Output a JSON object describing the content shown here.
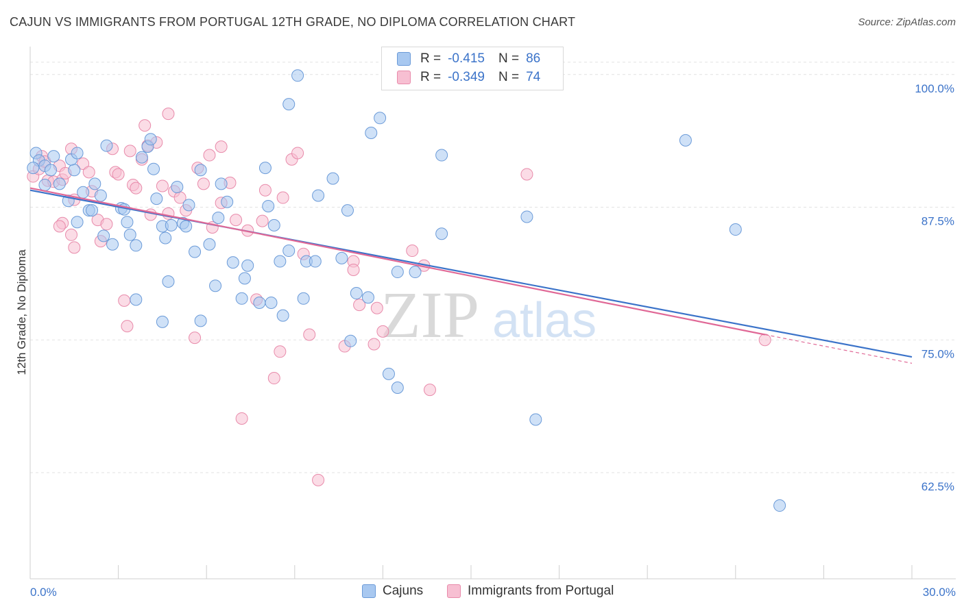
{
  "header": {
    "title": "CAJUN VS IMMIGRANTS FROM PORTUGAL 12TH GRADE, NO DIPLOMA CORRELATION CHART",
    "source": "Source: ZipAtlas.com"
  },
  "watermark": {
    "zip": "ZIP",
    "atlas": "atlas"
  },
  "legend": {
    "rows": [
      {
        "r_label": "R =",
        "r_value": "-0.415",
        "n_label": "N =",
        "n_value": "86",
        "color": "#a8c8f0",
        "stroke": "#6a9ad8"
      },
      {
        "r_label": "R =",
        "r_value": "-0.349",
        "n_label": "N =",
        "n_value": "74",
        "color": "#f7bfd2",
        "stroke": "#e88aaa"
      }
    ]
  },
  "bottom_legend": {
    "items": [
      {
        "label": "Cajuns",
        "color": "#a8c8f0",
        "stroke": "#6a9ad8"
      },
      {
        "label": "Immigrants from Portugal",
        "color": "#f7bfd2",
        "stroke": "#e88aaa"
      }
    ]
  },
  "chart_data": {
    "type": "scatter",
    "title": "CAJUN VS IMMIGRANTS FROM PORTUGAL 12TH GRADE, NO DIPLOMA CORRELATION CHART",
    "xlabel": "",
    "ylabel": "12th Grade, No Diploma",
    "xlim": [
      0,
      30
    ],
    "ylim": [
      52.5,
      102.5
    ],
    "x_tick_labels": [
      {
        "value": 0,
        "label": "0.0%"
      },
      {
        "value": 30,
        "label": "30.0%"
      }
    ],
    "y_tick_labels": [
      {
        "value": 100,
        "label": "100.0%"
      },
      {
        "value": 87.5,
        "label": "87.5%"
      },
      {
        "value": 75,
        "label": "75.0%"
      },
      {
        "value": 62.5,
        "label": "62.5%"
      }
    ],
    "grid": true,
    "colors": {
      "cajuns_fill": "#a8c8f0",
      "cajuns_stroke": "#6a9ad8",
      "cajuns_line": "#3b73c9",
      "portugal_fill": "#f7bfd2",
      "portugal_stroke": "#e88aaa",
      "portugal_line": "#e06896",
      "tick_label": "#3b73c9"
    },
    "series": [
      {
        "name": "Cajuns",
        "trend": {
          "x": [
            0,
            30
          ],
          "y": [
            89.1,
            73.4
          ]
        },
        "points": [
          [
            0.2,
            92.6
          ],
          [
            0.3,
            91.9
          ],
          [
            0.5,
            91.4
          ],
          [
            0.7,
            91.0
          ],
          [
            0.8,
            92.3
          ],
          [
            1.0,
            89.7
          ],
          [
            0.5,
            89.6
          ],
          [
            1.5,
            91.0
          ],
          [
            1.4,
            92.0
          ],
          [
            1.6,
            92.6
          ],
          [
            1.8,
            88.9
          ],
          [
            2.2,
            89.7
          ],
          [
            2.4,
            88.6
          ],
          [
            2.6,
            93.3
          ],
          [
            2.8,
            84.0
          ],
          [
            1.3,
            88.1
          ],
          [
            2.0,
            87.2
          ],
          [
            1.6,
            86.1
          ],
          [
            2.1,
            87.2
          ],
          [
            3.1,
            87.4
          ],
          [
            3.3,
            86.1
          ],
          [
            3.4,
            84.9
          ],
          [
            3.6,
            83.9
          ],
          [
            2.5,
            84.8
          ],
          [
            3.6,
            78.8
          ],
          [
            3.8,
            92.2
          ],
          [
            4.0,
            93.2
          ],
          [
            4.1,
            93.9
          ],
          [
            4.2,
            91.1
          ],
          [
            4.3,
            88.3
          ],
          [
            4.5,
            85.7
          ],
          [
            4.6,
            84.6
          ],
          [
            4.7,
            80.5
          ],
          [
            4.5,
            76.7
          ],
          [
            5.0,
            89.4
          ],
          [
            5.2,
            86.0
          ],
          [
            5.3,
            85.7
          ],
          [
            5.4,
            87.7
          ],
          [
            5.6,
            83.3
          ],
          [
            5.8,
            91.0
          ],
          [
            5.8,
            76.8
          ],
          [
            6.1,
            84.0
          ],
          [
            6.3,
            80.1
          ],
          [
            6.5,
            89.7
          ],
          [
            6.7,
            88.0
          ],
          [
            6.9,
            82.3
          ],
          [
            7.2,
            78.9
          ],
          [
            7.3,
            80.8
          ],
          [
            7.4,
            82.0
          ],
          [
            7.8,
            78.5
          ],
          [
            8.0,
            91.2
          ],
          [
            8.1,
            87.6
          ],
          [
            8.2,
            78.5
          ],
          [
            8.3,
            85.8
          ],
          [
            8.5,
            82.4
          ],
          [
            8.6,
            77.3
          ],
          [
            8.8,
            83.4
          ],
          [
            8.8,
            97.2
          ],
          [
            9.1,
            99.9
          ],
          [
            9.3,
            78.9
          ],
          [
            9.4,
            82.4
          ],
          [
            9.7,
            82.4
          ],
          [
            9.8,
            88.6
          ],
          [
            10.3,
            90.2
          ],
          [
            10.6,
            82.7
          ],
          [
            10.8,
            87.2
          ],
          [
            10.9,
            74.9
          ],
          [
            11.1,
            79.4
          ],
          [
            11.5,
            79.0
          ],
          [
            11.6,
            94.5
          ],
          [
            11.9,
            95.9
          ],
          [
            12.2,
            71.8
          ],
          [
            12.5,
            70.5
          ],
          [
            12.5,
            81.4
          ],
          [
            13.1,
            81.4
          ],
          [
            14.0,
            92.4
          ],
          [
            14.0,
            85.0
          ],
          [
            16.9,
            86.6
          ],
          [
            17.2,
            67.5
          ],
          [
            22.3,
            93.8
          ],
          [
            24.0,
            85.4
          ],
          [
            25.5,
            59.4
          ],
          [
            0.1,
            91.2
          ],
          [
            3.2,
            87.3
          ],
          [
            4.8,
            85.8
          ],
          [
            6.4,
            86.5
          ]
        ]
      },
      {
        "name": "Immigrants from Portugal",
        "trend": {
          "x": [
            0,
            25
          ],
          "y": [
            89.3,
            75.5
          ]
        },
        "trend_dashed": {
          "x": [
            25,
            30
          ],
          "y": [
            75.5,
            72.8
          ]
        },
        "points": [
          [
            0.1,
            90.4
          ],
          [
            0.3,
            91.1
          ],
          [
            0.4,
            92.3
          ],
          [
            0.5,
            91.8
          ],
          [
            0.6,
            90.0
          ],
          [
            0.8,
            89.9
          ],
          [
            1.1,
            90.1
          ],
          [
            1.0,
            91.4
          ],
          [
            1.2,
            90.7
          ],
          [
            1.4,
            93.0
          ],
          [
            1.5,
            88.2
          ],
          [
            1.1,
            86.0
          ],
          [
            1.0,
            85.7
          ],
          [
            1.4,
            84.9
          ],
          [
            1.5,
            83.7
          ],
          [
            1.8,
            91.6
          ],
          [
            2.0,
            90.8
          ],
          [
            2.1,
            89.0
          ],
          [
            2.3,
            86.3
          ],
          [
            2.4,
            84.3
          ],
          [
            2.6,
            85.9
          ],
          [
            2.8,
            93.0
          ],
          [
            2.9,
            90.8
          ],
          [
            3.0,
            90.6
          ],
          [
            3.2,
            78.7
          ],
          [
            3.3,
            76.3
          ],
          [
            3.4,
            92.8
          ],
          [
            3.5,
            89.6
          ],
          [
            3.6,
            89.3
          ],
          [
            3.8,
            92.0
          ],
          [
            3.9,
            95.2
          ],
          [
            4.0,
            93.3
          ],
          [
            4.1,
            86.8
          ],
          [
            4.3,
            93.6
          ],
          [
            4.5,
            89.5
          ],
          [
            4.7,
            86.9
          ],
          [
            4.7,
            96.3
          ],
          [
            4.9,
            89.0
          ],
          [
            5.1,
            88.4
          ],
          [
            5.3,
            87.2
          ],
          [
            5.6,
            75.2
          ],
          [
            5.7,
            91.2
          ],
          [
            5.9,
            89.7
          ],
          [
            6.1,
            92.4
          ],
          [
            6.2,
            85.6
          ],
          [
            6.5,
            93.2
          ],
          [
            6.5,
            87.9
          ],
          [
            6.8,
            89.8
          ],
          [
            7.0,
            86.3
          ],
          [
            7.2,
            67.6
          ],
          [
            7.4,
            85.3
          ],
          [
            7.7,
            78.8
          ],
          [
            7.9,
            86.2
          ],
          [
            8.0,
            89.1
          ],
          [
            8.3,
            71.4
          ],
          [
            8.5,
            73.9
          ],
          [
            8.6,
            88.4
          ],
          [
            8.9,
            92.0
          ],
          [
            9.1,
            92.6
          ],
          [
            9.3,
            83.1
          ],
          [
            9.5,
            75.5
          ],
          [
            9.8,
            61.8
          ],
          [
            10.7,
            74.4
          ],
          [
            11.0,
            82.4
          ],
          [
            11.0,
            81.6
          ],
          [
            11.2,
            78.3
          ],
          [
            11.7,
            74.6
          ],
          [
            11.8,
            78.0
          ],
          [
            12.0,
            75.8
          ],
          [
            13.0,
            83.4
          ],
          [
            13.4,
            82.0
          ],
          [
            13.6,
            70.3
          ],
          [
            16.9,
            90.6
          ],
          [
            25.0,
            75.0
          ]
        ]
      }
    ]
  }
}
